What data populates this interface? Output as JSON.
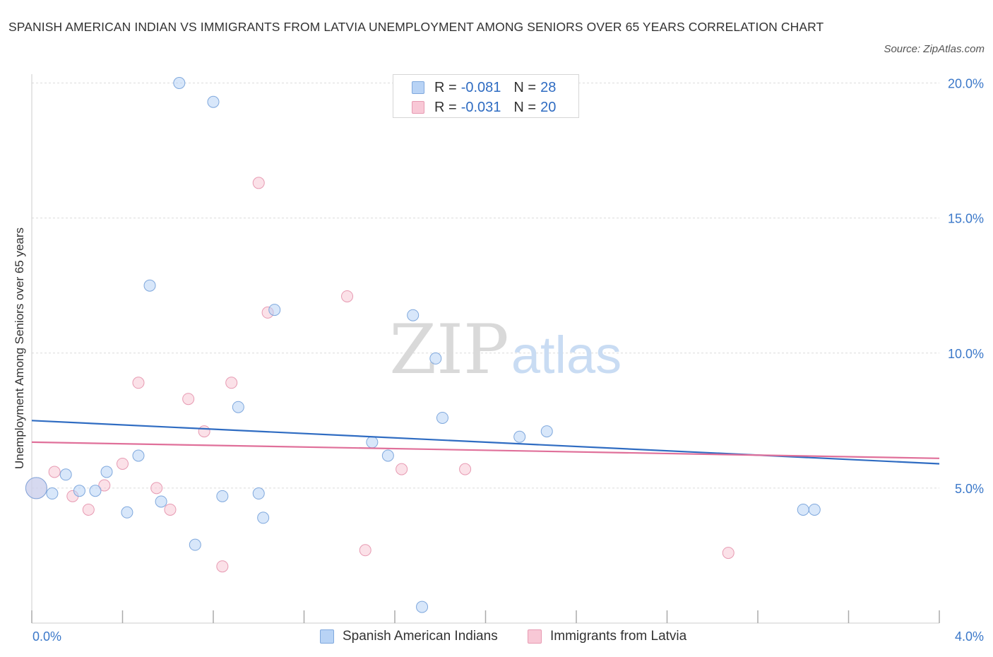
{
  "title": "SPANISH AMERICAN INDIAN VS IMMIGRANTS FROM LATVIA UNEMPLOYMENT AMONG SENIORS OVER 65 YEARS CORRELATION CHART",
  "source": "Source: ZipAtlas.com",
  "watermark": {
    "zip": "ZIP",
    "atlas": "atlas"
  },
  "legend": {
    "rows": [
      {
        "r_label": "R =",
        "r_value": "-0.081",
        "n_label": "N =",
        "n_value": "28"
      },
      {
        "r_label": "R =",
        "r_value": "-0.031",
        "n_label": "N =",
        "n_value": "20"
      }
    ]
  },
  "colors": {
    "blue_fill": "#b8d3f5",
    "blue_stroke": "#7fa8dd",
    "blue_line": "#2f6cc2",
    "pink_fill": "#f8c8d6",
    "pink_stroke": "#e79ab2",
    "pink_line": "#e0709a",
    "axis_label": "#3b78c9",
    "grid": "#dcdcdc"
  },
  "chart_data": {
    "type": "scatter",
    "title": "SPANISH AMERICAN INDIAN VS IMMIGRANTS FROM LATVIA UNEMPLOYMENT AMONG SENIORS OVER 65 YEARS CORRELATION CHART",
    "xlabel": "",
    "ylabel": "Unemployment Among Seniors over 65 years",
    "xlim": [
      0,
      4.0
    ],
    "ylim": [
      0,
      20.0
    ],
    "x_tick_labels": [
      "0.0%",
      "4.0%"
    ],
    "y_ticks": [
      5,
      10,
      15,
      20
    ],
    "y_tick_labels": [
      "5.0%",
      "10.0%",
      "15.0%",
      "20.0%"
    ],
    "grid": true,
    "legend_position": "bottom",
    "series": [
      {
        "name": "Spanish American Indians",
        "color": "#b8d3f5",
        "points": [
          [
            0.02,
            5.0
          ],
          [
            0.09,
            4.8
          ],
          [
            0.15,
            5.5
          ],
          [
            0.21,
            4.9
          ],
          [
            0.28,
            4.9
          ],
          [
            0.33,
            5.6
          ],
          [
            0.42,
            4.1
          ],
          [
            0.47,
            6.2
          ],
          [
            0.52,
            12.5
          ],
          [
            0.57,
            4.5
          ],
          [
            0.65,
            20.0
          ],
          [
            0.72,
            2.9
          ],
          [
            0.8,
            19.3
          ],
          [
            0.84,
            4.7
          ],
          [
            0.91,
            8.0
          ],
          [
            1.0,
            4.8
          ],
          [
            1.02,
            3.9
          ],
          [
            1.07,
            11.6
          ],
          [
            1.5,
            6.7
          ],
          [
            1.57,
            6.2
          ],
          [
            1.68,
            11.4
          ],
          [
            1.72,
            0.6
          ],
          [
            1.78,
            9.8
          ],
          [
            1.81,
            7.6
          ],
          [
            2.15,
            6.9
          ],
          [
            2.27,
            7.1
          ],
          [
            3.4,
            4.2
          ],
          [
            3.45,
            4.2
          ]
        ],
        "trend": {
          "x": [
            0.0,
            4.0
          ],
          "y": [
            7.5,
            5.9
          ]
        }
      },
      {
        "name": "Immigrants from Latvia",
        "color": "#f8c8d6",
        "points": [
          [
            0.02,
            5.0
          ],
          [
            0.1,
            5.6
          ],
          [
            0.18,
            4.7
          ],
          [
            0.25,
            4.2
          ],
          [
            0.32,
            5.1
          ],
          [
            0.4,
            5.9
          ],
          [
            0.47,
            8.9
          ],
          [
            0.55,
            5.0
          ],
          [
            0.61,
            4.2
          ],
          [
            0.69,
            8.3
          ],
          [
            0.76,
            7.1
          ],
          [
            0.84,
            2.1
          ],
          [
            0.88,
            8.9
          ],
          [
            1.0,
            16.3
          ],
          [
            1.04,
            11.5
          ],
          [
            1.39,
            12.1
          ],
          [
            1.47,
            2.7
          ],
          [
            1.63,
            5.7
          ],
          [
            1.91,
            5.7
          ],
          [
            3.07,
            2.6
          ]
        ],
        "trend": {
          "x": [
            0.0,
            4.0
          ],
          "y": [
            6.7,
            6.1
          ]
        }
      }
    ]
  }
}
